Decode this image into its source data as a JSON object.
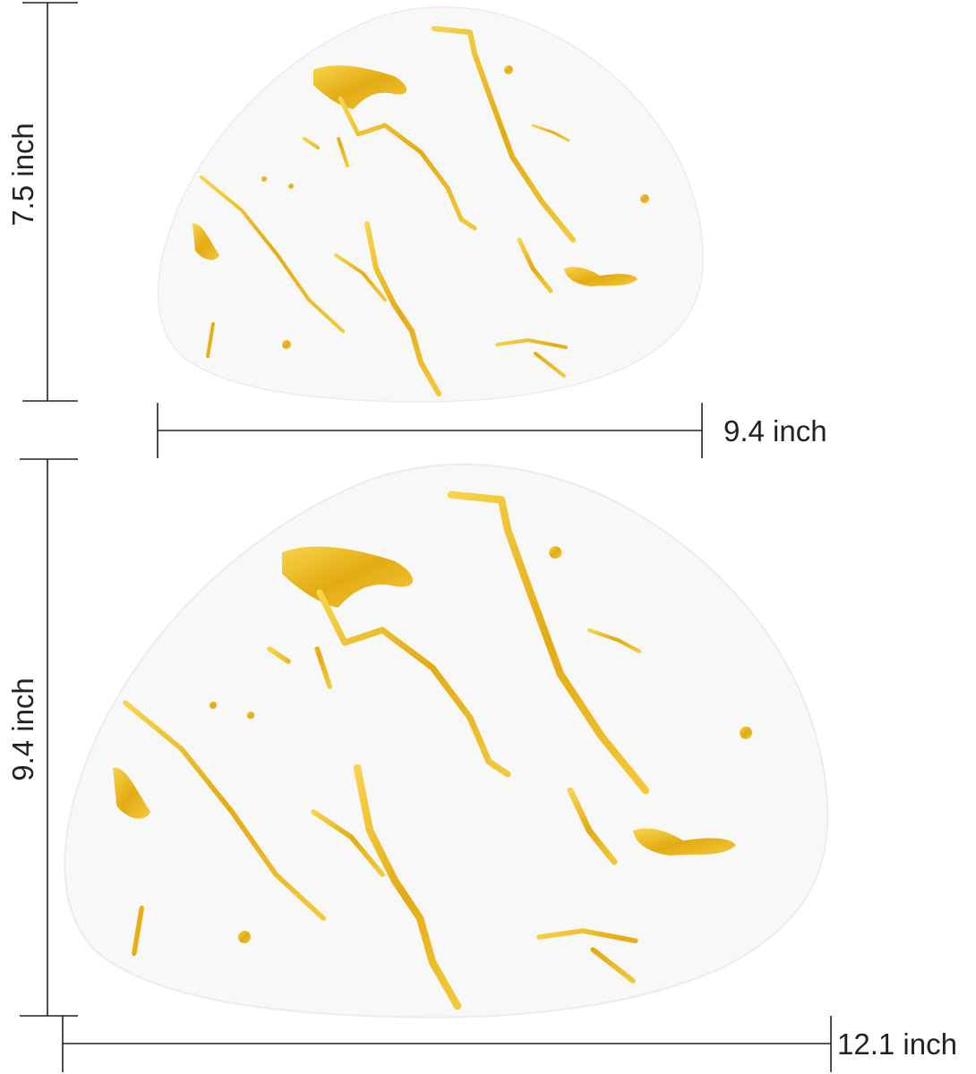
{
  "product": {
    "description_visible": "two triangular white plates with gold marble veins",
    "colors": {
      "plate": "#f8f8f8",
      "gold": "#e9b81e",
      "line": "#222222"
    }
  },
  "dimensions": {
    "small_height": "7.5 inch",
    "small_width": "9.4 inch",
    "large_height": "9.4 inch",
    "large_width": "12.1 inch"
  }
}
